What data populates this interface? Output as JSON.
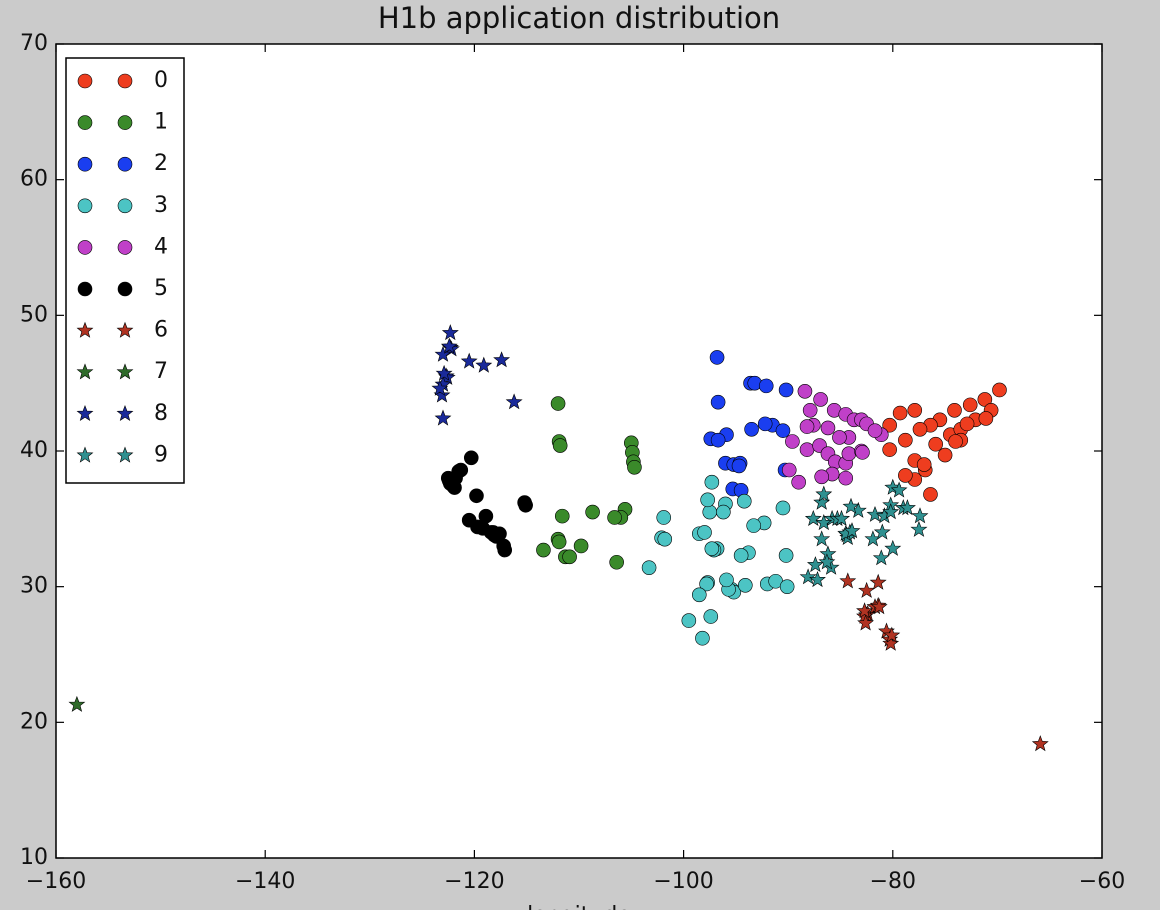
{
  "chart_data": {
    "type": "scatter",
    "title": "H1b application distribution",
    "x_label": "longitude",
    "xlim": [
      -160,
      -60
    ],
    "ylim": [
      10,
      70
    ],
    "xticks": [
      {
        "value": -160,
        "label": "−160"
      },
      {
        "value": -140,
        "label": "−140"
      },
      {
        "value": -120,
        "label": "−120"
      },
      {
        "value": -100,
        "label": "−100"
      },
      {
        "value": -80,
        "label": "−80"
      },
      {
        "value": -60,
        "label": "−60"
      }
    ],
    "yticks": [
      10,
      20,
      30,
      40,
      50,
      60,
      70
    ],
    "legend": "upper left",
    "series": [
      {
        "name": "0",
        "color": "#ee3d1f",
        "marker": "circle",
        "x": [
          -69.8,
          -71.2,
          -72.6,
          -74.1,
          -75.5,
          -76.4,
          -77.4,
          -77.9,
          -79.3,
          -80.3,
          -80.3,
          -78.8,
          -77.9,
          -76.9,
          -76.4,
          -77.9,
          -78.8,
          -75.9,
          -74.5,
          -73.5,
          -72.1,
          -70.6,
          -75.0,
          -73.5,
          -74.0,
          -71.1,
          -72.9,
          -77.0
        ],
        "values": [
          44.5,
          43.8,
          43.4,
          43.0,
          42.3,
          41.9,
          41.6,
          43.0,
          42.8,
          41.9,
          40.1,
          40.8,
          39.3,
          38.6,
          36.8,
          37.9,
          38.2,
          40.5,
          41.2,
          41.6,
          42.3,
          43.0,
          39.7,
          40.8,
          40.7,
          42.4,
          42.0,
          39.0
        ]
      },
      {
        "name": "1",
        "color": "#3a8a2a",
        "marker": "circle",
        "x": [
          -112.0,
          -111.9,
          -111.8,
          -105.0,
          -104.9,
          -104.8,
          -104.7,
          -105.6,
          -106.0,
          -106.6,
          -108.7,
          -111.6,
          -112.0,
          -111.9,
          -111.3,
          -110.9,
          -113.4,
          -109.8,
          -106.4
        ],
        "values": [
          43.5,
          40.7,
          40.4,
          40.6,
          39.9,
          39.2,
          38.8,
          35.7,
          35.1,
          35.1,
          35.5,
          35.2,
          33.5,
          33.3,
          32.2,
          32.2,
          32.7,
          33.0,
          31.8
        ]
      },
      {
        "name": "2",
        "color": "#1a3ef0",
        "marker": "circle",
        "x": [
          -96.8,
          -96.7,
          -93.6,
          -93.2,
          -92.1,
          -90.2,
          -93.5,
          -91.5,
          -90.5,
          -95.9,
          -97.4,
          -96.7,
          -96.0,
          -95.2,
          -94.6,
          -94.7,
          -95.3,
          -94.5,
          -90.3,
          -92.2
        ],
        "values": [
          46.9,
          43.6,
          45.0,
          45.0,
          44.8,
          44.5,
          41.6,
          41.9,
          41.5,
          41.2,
          40.9,
          40.8,
          39.1,
          39.0,
          39.1,
          38.9,
          37.2,
          37.1,
          38.6,
          42.0
        ]
      },
      {
        "name": "3",
        "color": "#4cc4c4",
        "marker": "circle",
        "x": [
          -97.5,
          -97.3,
          -96.0,
          -97.7,
          -97.8,
          -98.5,
          -97.4,
          -98.2,
          -99.5,
          -96.8,
          -97.1,
          -97.3,
          -95.4,
          -95.2,
          -95.7,
          -94.1,
          -92.0,
          -91.2,
          -90.1,
          -93.8,
          -90.2,
          -92.3,
          -94.2,
          -101.9,
          -102.1,
          -101.8,
          -103.3,
          -98.5,
          -97.7,
          -96.2,
          -93.3,
          -90.5,
          -94.5,
          -95.9,
          -98.0
        ],
        "values": [
          35.5,
          37.7,
          36.1,
          30.3,
          30.2,
          29.4,
          27.8,
          26.2,
          27.5,
          32.8,
          32.7,
          32.8,
          29.8,
          29.6,
          29.8,
          30.1,
          30.2,
          30.4,
          30.0,
          32.5,
          32.3,
          34.7,
          36.3,
          35.1,
          33.6,
          33.5,
          31.4,
          33.9,
          36.4,
          35.5,
          34.5,
          35.8,
          32.3,
          30.5,
          34.0
        ]
      },
      {
        "name": "4",
        "color": "#c040c8",
        "marker": "circle",
        "x": [
          -88.4,
          -87.9,
          -86.9,
          -85.6,
          -84.5,
          -83.7,
          -83.0,
          -82.5,
          -81.1,
          -84.2,
          -85.1,
          -86.2,
          -87.6,
          -88.2,
          -89.6,
          -88.2,
          -87.0,
          -86.2,
          -85.5,
          -84.5,
          -84.2,
          -83.0,
          -82.9,
          -81.7,
          -85.8,
          -84.5,
          -89.0,
          -89.9,
          -86.8
        ],
        "values": [
          44.4,
          43.0,
          43.8,
          43.0,
          42.7,
          42.3,
          42.3,
          42.0,
          41.2,
          41.0,
          41.0,
          41.7,
          41.9,
          41.8,
          40.7,
          40.1,
          40.4,
          39.8,
          39.2,
          39.1,
          39.8,
          40.0,
          39.9,
          41.5,
          38.3,
          38.0,
          37.7,
          38.6,
          38.1
        ]
      },
      {
        "name": "5",
        "color": "#000000",
        "marker": "circle",
        "x": [
          -122.4,
          -122.3,
          -122.0,
          -121.9,
          -121.5,
          -121.3,
          -120.3,
          -121.8,
          -122.1,
          -122.5,
          -119.8,
          -120.5,
          -119.7,
          -119.2,
          -118.9,
          -118.4,
          -118.2,
          -117.9,
          -117.6,
          -117.2,
          -117.1,
          -118.1,
          -115.2,
          -115.1
        ],
        "values": [
          37.8,
          37.6,
          37.4,
          37.3,
          38.5,
          38.6,
          39.5,
          38.0,
          37.9,
          38.0,
          36.7,
          34.9,
          34.4,
          34.3,
          35.2,
          34.0,
          34.0,
          33.7,
          33.9,
          33.0,
          32.7,
          33.8,
          36.2,
          36.0
        ]
      },
      {
        "name": "6",
        "color": "#b03322",
        "marker": "star",
        "x": [
          -84.3,
          -81.4,
          -82.5,
          -82.4,
          -82.5,
          -82.7,
          -81.7,
          -81.4,
          -81.3,
          -80.6,
          -80.3,
          -80.2,
          -80.1,
          -82.6,
          -65.9,
          -82.7
        ],
        "values": [
          30.4,
          30.3,
          29.7,
          28.0,
          27.9,
          27.8,
          28.5,
          28.6,
          28.5,
          26.7,
          26.1,
          25.8,
          26.4,
          27.3,
          18.4,
          28.2
        ]
      },
      {
        "name": "7",
        "color": "#2f6b2a",
        "marker": "star",
        "x": [
          -158.0
        ],
        "values": [
          21.3
        ]
      },
      {
        "name": "8",
        "color": "#1a2a9a",
        "marker": "star",
        "x": [
          -122.3,
          -122.2,
          -122.3,
          -123.0,
          -122.7,
          -122.6,
          -123.0,
          -123.1,
          -123.3,
          -123.0,
          -120.5,
          -119.1,
          -117.4,
          -116.2,
          -122.4,
          -122.9
        ],
        "values": [
          47.6,
          47.5,
          48.7,
          47.1,
          45.5,
          45.4,
          44.9,
          44.1,
          44.6,
          42.4,
          46.6,
          46.3,
          46.7,
          43.6,
          47.7,
          45.7
        ]
      },
      {
        "name": "9",
        "color": "#2f9090",
        "marker": "star",
        "x": [
          -86.8,
          -86.6,
          -85.8,
          -85.3,
          -84.4,
          -84.1,
          -84.3,
          -83.3,
          -84.0,
          -81.7,
          -80.8,
          -80.2,
          -79.0,
          -78.6,
          -77.4,
          -80.0,
          -79.4,
          -77.5,
          -80.2,
          -84.5,
          -86.2,
          -86.8,
          -88.1,
          -87.2,
          -85.9,
          -87.6,
          -86.6,
          -84.9,
          -83.9,
          -81.9,
          -81.0,
          -80.0,
          -81.1,
          -87.4,
          -86.3
        ],
        "values": [
          36.2,
          36.8,
          35.0,
          35.0,
          33.8,
          34.0,
          33.6,
          35.6,
          35.9,
          35.3,
          35.2,
          36.0,
          35.8,
          35.8,
          35.2,
          37.3,
          37.1,
          34.2,
          35.5,
          33.9,
          32.4,
          33.5,
          30.7,
          30.5,
          31.4,
          35.0,
          34.7,
          35.0,
          34.1,
          33.5,
          34.0,
          32.8,
          32.1,
          31.6,
          31.8
        ]
      }
    ]
  }
}
